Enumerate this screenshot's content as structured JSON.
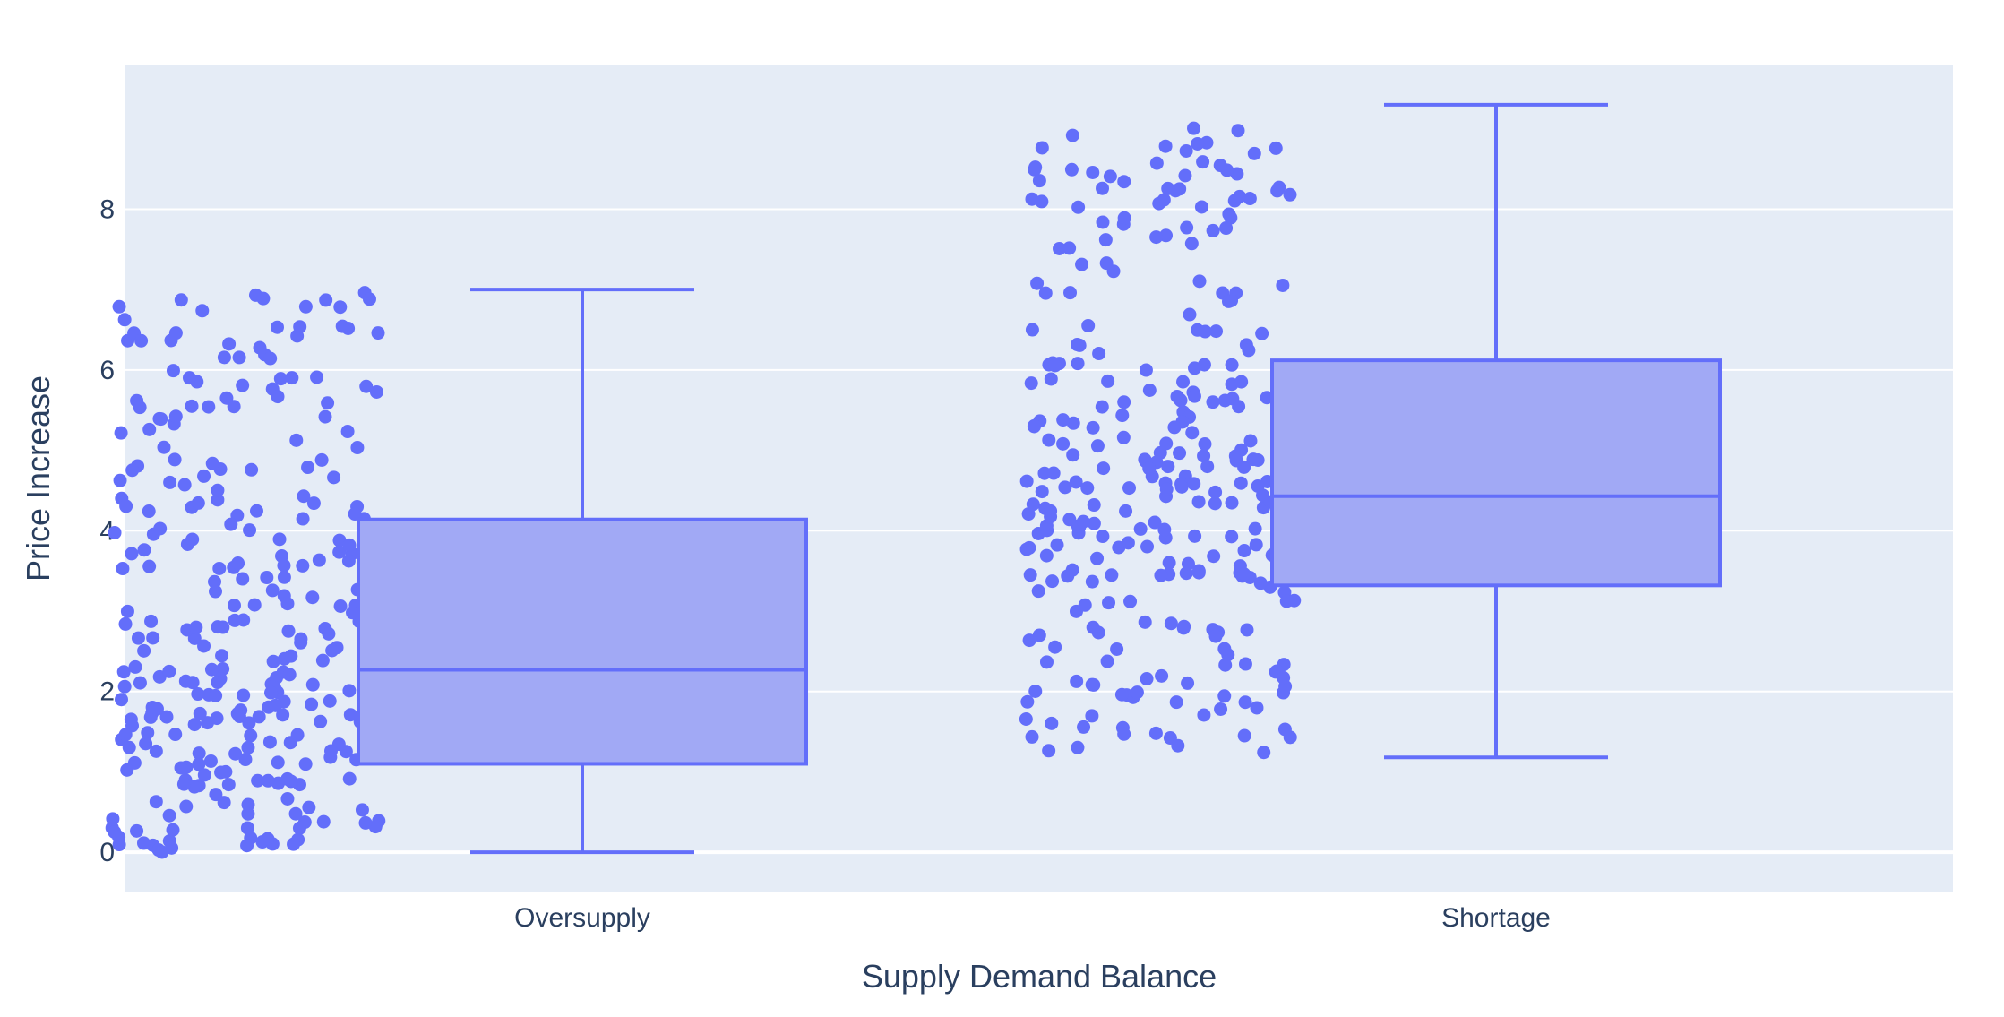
{
  "chart_data": {
    "type": "box",
    "title": "",
    "xlabel": "Supply Demand Balance",
    "ylabel": "Price Increase",
    "ylim": [
      -0.5,
      9.8
    ],
    "yticks": [
      0,
      2,
      4,
      6,
      8
    ],
    "grid": true,
    "points": "all",
    "categories": [
      "Oversupply",
      "Shortage"
    ],
    "boxes": [
      {
        "category": "Oversupply",
        "min": 0,
        "q1": 1.1,
        "median": 2.27,
        "q3": 4.14,
        "max": 7.0,
        "n": 300,
        "seed": 11
      },
      {
        "category": "Shortage",
        "min": 1.18,
        "q1": 3.32,
        "median": 4.43,
        "q3": 6.12,
        "max": 9.3,
        "n": 300,
        "seed": 29
      }
    ],
    "colors": {
      "marker": "#636efa",
      "box_fill": "#a1a9f5",
      "plot_bg": "#e5ecf6",
      "grid": "#ffffff",
      "text": "#2a3f5f"
    }
  }
}
